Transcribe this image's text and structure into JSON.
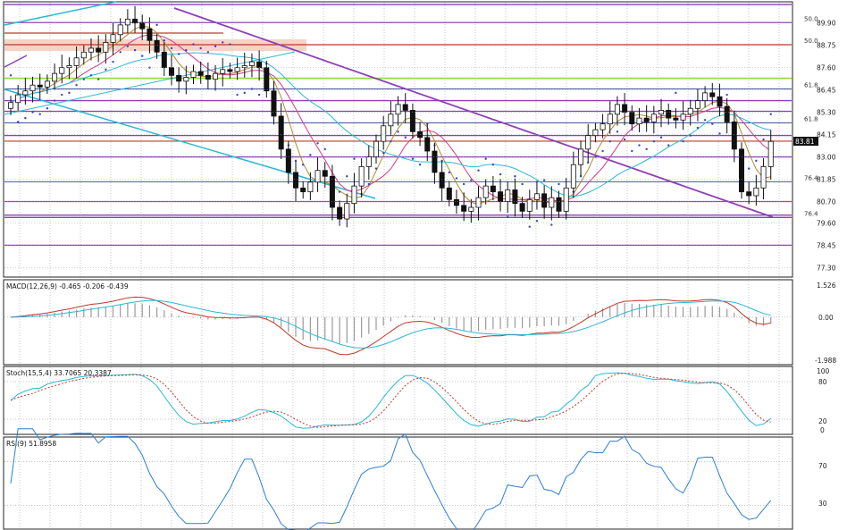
{
  "chart_data": [
    {
      "type": "candlestick",
      "name_label": "",
      "y_ticks": [
        "89.90",
        "88.75",
        "87.60",
        "86.45",
        "85.30",
        "84.15",
        "83.00",
        "81.85",
        "80.70",
        "79.60",
        "78.45",
        "77.30"
      ],
      "ylim": [
        76.9,
        90.9
      ],
      "price_marker": "83.81",
      "fib_labels": [
        {
          "text": "50.0",
          "y": 89.92
        },
        {
          "text": "50.0",
          "y": 88.78
        },
        {
          "text": "61.8",
          "y": 86.5
        },
        {
          "text": "61.8",
          "y": 84.75
        },
        {
          "text": "76.4",
          "y": 81.72
        },
        {
          "text": "76.4",
          "y": 79.88
        }
      ],
      "close": [
        85.8,
        86.2,
        86.4,
        86.7,
        86.6,
        86.9,
        87.3,
        87.6,
        87.7,
        88.1,
        88.4,
        88.6,
        88.4,
        88.9,
        89.3,
        89.8,
        90.1,
        89.9,
        89.6,
        89.0,
        88.4,
        87.6,
        87.2,
        86.9,
        87.1,
        87.4,
        87.2,
        87.0,
        87.3,
        87.5,
        87.4,
        87.6,
        87.7,
        87.9,
        87.6,
        86.4,
        85.1,
        83.4,
        82.2,
        81.4,
        81.2,
        81.7,
        82.3,
        82.0,
        80.4,
        79.8,
        80.6,
        81.5,
        82.5,
        83.0,
        83.8,
        84.6,
        85.2,
        85.7,
        85.4,
        84.3,
        84.0,
        83.3,
        82.2,
        81.4,
        80.8,
        80.5,
        80.2,
        80.4,
        80.9,
        81.5,
        81.2,
        80.7,
        81.3,
        80.6,
        80.2,
        80.8,
        81.1,
        80.4,
        80.9,
        80.2,
        81.4,
        82.6,
        83.4,
        84.1,
        84.4,
        84.7,
        85.2,
        85.7,
        85.3,
        84.7,
        85.0,
        84.8,
        85.2,
        85.4,
        85.0,
        84.9,
        85.2,
        85.5,
        85.9,
        86.3,
        86.1,
        85.6,
        84.8,
        83.4,
        81.2,
        81.0,
        81.4,
        82.5,
        83.8
      ],
      "trend_lines": "drawn",
      "horizontal_levels": [
        90.85,
        89.92,
        88.78,
        87.05,
        86.5,
        85.9,
        85.35,
        84.75,
        84.1,
        83.81,
        83.0,
        81.72,
        80.7,
        80.0,
        79.88,
        78.45
      ]
    },
    {
      "type": "macd",
      "title": "MACD(12,26,9) -0.465 -0.206 -0.439",
      "y_ticks": [
        "1.526",
        "0.00",
        "-1.988"
      ],
      "ylim": [
        -2.0,
        1.55
      ]
    },
    {
      "type": "stochastic",
      "title": "Stoch(15,5,4) 33.7065 20.3387",
      "y_ticks": [
        "100",
        "80",
        "20",
        "0"
      ],
      "ylim": [
        0,
        100
      ]
    },
    {
      "type": "rsi",
      "title": "RSI(9) 51.8958",
      "y_ticks": [
        "70",
        "30"
      ],
      "ylim": [
        10,
        90
      ]
    }
  ],
  "colors": {
    "up": "#ffffff",
    "down": "#111111",
    "grid": "#9aa4b8",
    "purple": "#8e3fb8",
    "darkblue": "#2b3d8f",
    "red": "#c0392b",
    "green": "#8fdc3a",
    "cyan": "#2bb8d6",
    "sar": "#3b44c7",
    "pink_zone": "#f2c9b6"
  }
}
